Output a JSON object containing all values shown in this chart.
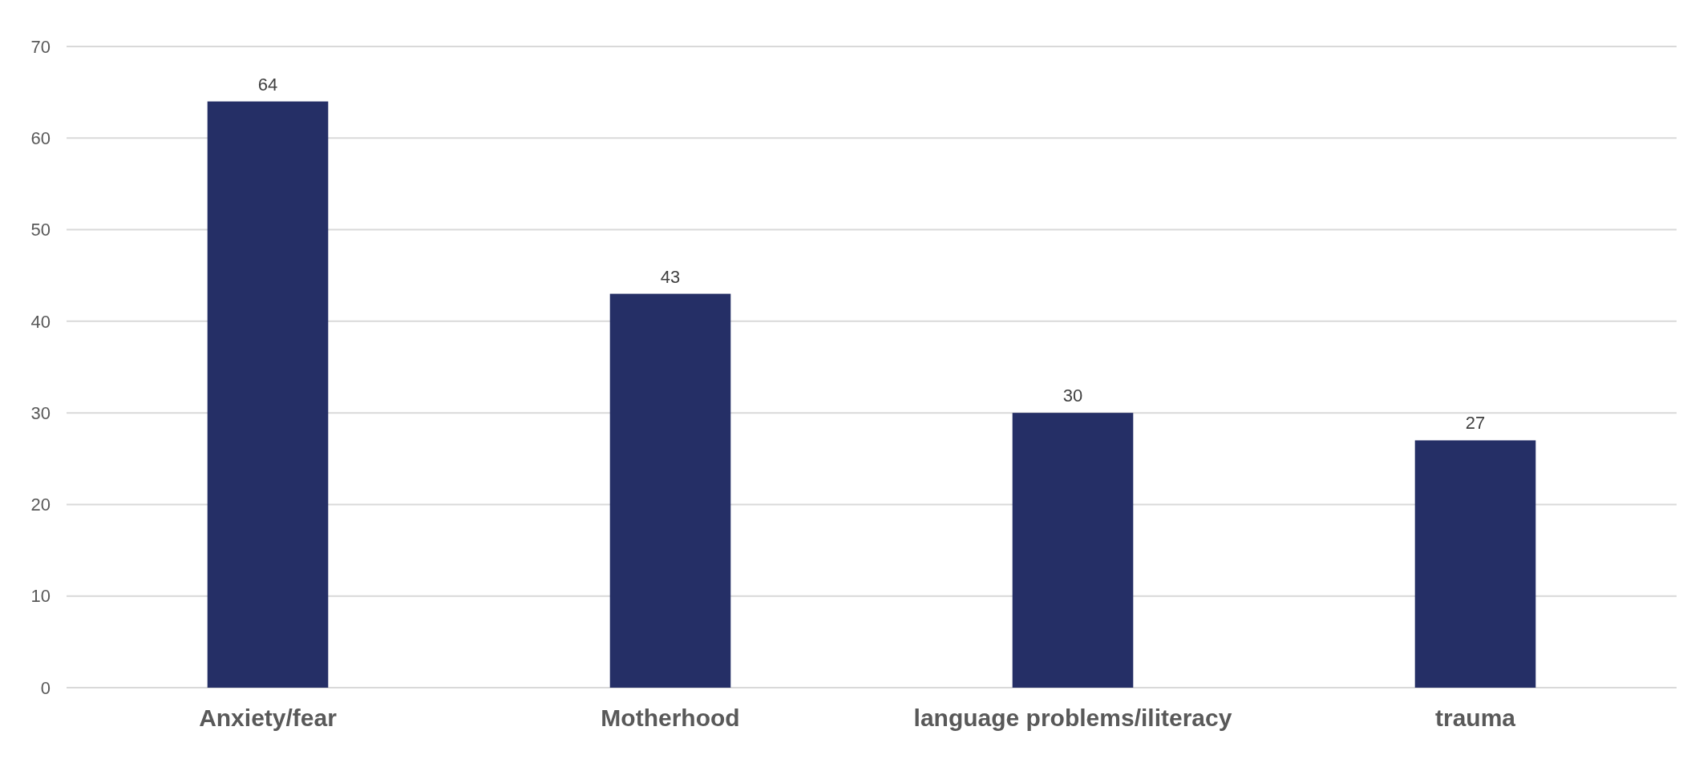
{
  "chart_data": {
    "type": "bar",
    "categories": [
      "Anxiety/fear",
      "Motherhood",
      "language problems/iliteracy",
      "trauma"
    ],
    "values": [
      64,
      43,
      30,
      27
    ],
    "color": "#252f66",
    "ylim": [
      0,
      70
    ],
    "yticks": [
      0,
      10,
      20,
      30,
      40,
      50,
      60,
      70
    ],
    "grid": "y",
    "data_labels": true
  }
}
